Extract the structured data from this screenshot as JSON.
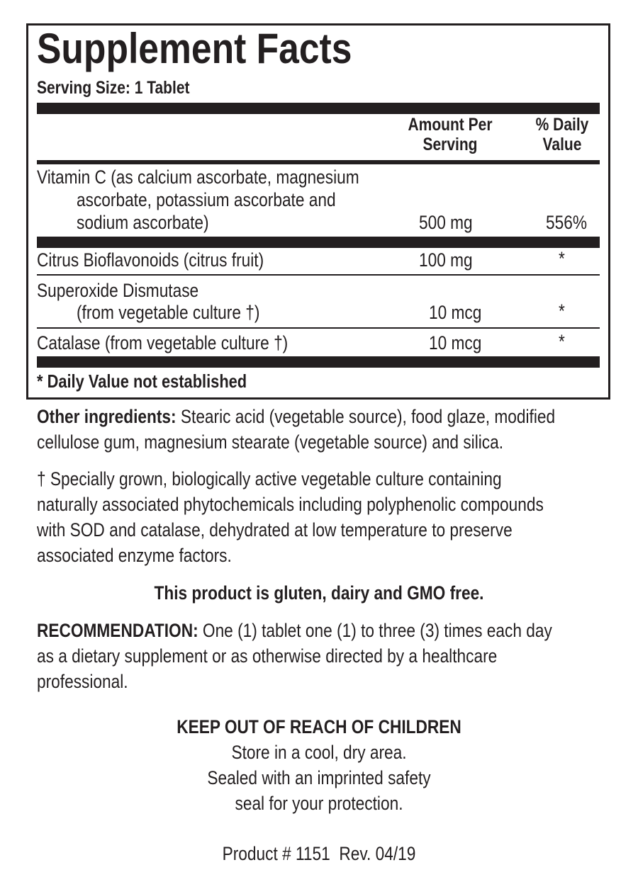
{
  "facts": {
    "title": "Supplement Facts",
    "serving_size": "Serving Size: 1 Tablet",
    "header": {
      "amount_line1": "Amount Per",
      "amount_line2": "Serving",
      "dv_line1": "% Daily",
      "dv_line2": "Value"
    },
    "rows": [
      {
        "lines": [
          "Vitamin C (as calcium ascorbate, magnesium",
          "ascorbate, potassium ascorbate and",
          "sodium ascorbate)"
        ],
        "amount": "500 mg",
        "dv": "556%"
      },
      {
        "lines": [
          "Citrus Bioflavonoids (citrus fruit)"
        ],
        "amount": "100 mg",
        "dv": "*"
      },
      {
        "lines": [
          "Superoxide Dismutase",
          "(from vegetable culture †)"
        ],
        "amount": "10 mcg",
        "dv": "*"
      },
      {
        "lines": [
          "Catalase (from vegetable culture †)"
        ],
        "amount": "10 mcg",
        "dv": "*"
      }
    ],
    "footnote": "* Daily Value not established"
  },
  "other_ingredients": {
    "label": "Other ingredients:",
    "line1": " Stearic acid (vegetable source), food glaze, modified",
    "line2": "cellulose gum, magnesium stearate (vegetable source) and silica."
  },
  "dagger_note": [
    "† Specially grown, biologically active vegetable culture containing",
    "naturally associated phytochemicals including polyphenolic compounds",
    "with SOD and catalase, dehydrated at low temperature to preserve",
    "associated enzyme factors."
  ],
  "free_from": "This product is gluten, dairy and GMO free.",
  "recommendation": {
    "label": "RECOMMENDATION:",
    "line1": " One (1) tablet one (1) to three (3) times each day",
    "line2": "as a dietary supplement or as otherwise directed by a healthcare",
    "line3": "professional."
  },
  "warning": {
    "title": "KEEP OUT OF REACH OF CHILDREN",
    "lines": [
      "Store in a cool, dry area.",
      "Sealed with an imprinted safety",
      "seal for your protection."
    ]
  },
  "product_info": "Product # 1151  Rev. 04/19"
}
